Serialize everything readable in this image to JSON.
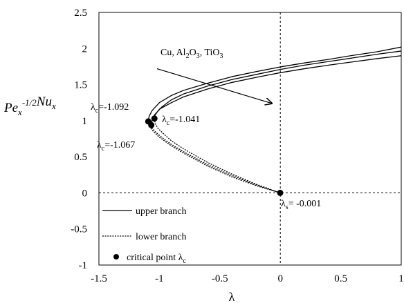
{
  "chart_data": {
    "type": "line",
    "xlabel": "λ",
    "ylabel": {
      "base1": "Pe",
      "sub1": "x",
      "sup1": "-1/2",
      "base2": "Nu",
      "sub2": "x"
    },
    "xlim": [
      -1.5,
      1
    ],
    "ylim": [
      -1,
      2.5
    ],
    "x_ticks": [
      "-1.5",
      "-1",
      "-0.5",
      "0",
      "0.5",
      "1"
    ],
    "y_ticks": [
      "-1",
      "-0.5",
      "0",
      "0.5",
      "1",
      "1.5",
      "2",
      "2.5"
    ],
    "reference_lines": {
      "x": 0,
      "y": 0
    },
    "grid": false,
    "legend_position": "bottom-left",
    "legend": [
      {
        "label": "upper branch",
        "style": "solid"
      },
      {
        "label": "lower branch",
        "style": "dashed"
      },
      {
        "label": "critical point λ",
        "sub": "c",
        "style": "marker"
      }
    ],
    "series": [
      {
        "branch": "upper",
        "style": "solid",
        "points": [
          [
            -1.092,
            0.99
          ],
          [
            -1.085,
            1.06
          ],
          [
            -1.06,
            1.14
          ],
          [
            -1.0,
            1.25
          ],
          [
            -0.9,
            1.35
          ],
          [
            -0.8,
            1.42
          ],
          [
            -0.6,
            1.52
          ],
          [
            -0.4,
            1.61
          ],
          [
            -0.2,
            1.68
          ],
          [
            0,
            1.745
          ],
          [
            0.2,
            1.8
          ],
          [
            0.4,
            1.85
          ],
          [
            0.6,
            1.905
          ],
          [
            0.8,
            1.955
          ],
          [
            1,
            2.02
          ]
        ]
      },
      {
        "branch": "upper",
        "style": "solid",
        "points": [
          [
            -1.067,
            0.94
          ],
          [
            -1.06,
            1.01
          ],
          [
            -1.04,
            1.08
          ],
          [
            -0.98,
            1.19
          ],
          [
            -0.9,
            1.29
          ],
          [
            -0.8,
            1.37
          ],
          [
            -0.6,
            1.48
          ],
          [
            -0.4,
            1.57
          ],
          [
            -0.2,
            1.64
          ],
          [
            0,
            1.71
          ],
          [
            0.2,
            1.77
          ],
          [
            0.4,
            1.82
          ],
          [
            0.6,
            1.87
          ],
          [
            0.8,
            1.92
          ],
          [
            1,
            1.965
          ]
        ]
      },
      {
        "branch": "upper",
        "style": "solid",
        "points": [
          [
            -1.041,
            1.03
          ],
          [
            -1.035,
            1.08
          ],
          [
            -1.0,
            1.16
          ],
          [
            -0.9,
            1.25
          ],
          [
            -0.8,
            1.33
          ],
          [
            -0.6,
            1.44
          ],
          [
            -0.4,
            1.53
          ],
          [
            -0.2,
            1.6
          ],
          [
            0,
            1.665
          ],
          [
            0.2,
            1.72
          ],
          [
            0.4,
            1.77
          ],
          [
            0.6,
            1.815
          ],
          [
            0.8,
            1.86
          ],
          [
            1,
            1.9
          ]
        ]
      },
      {
        "branch": "lower",
        "style": "dashed",
        "points": [
          [
            -1.092,
            0.99
          ],
          [
            -1.085,
            0.93
          ],
          [
            -1.05,
            0.85
          ],
          [
            -1.0,
            0.77
          ],
          [
            -0.9,
            0.65
          ],
          [
            -0.8,
            0.55
          ],
          [
            -0.6,
            0.37
          ],
          [
            -0.4,
            0.22
          ],
          [
            -0.2,
            0.1
          ],
          [
            -0.001,
            0
          ]
        ]
      },
      {
        "branch": "lower",
        "style": "dashed",
        "points": [
          [
            -1.067,
            0.94
          ],
          [
            -1.06,
            0.9
          ],
          [
            -1.03,
            0.84
          ],
          [
            -0.98,
            0.77
          ],
          [
            -0.9,
            0.67
          ],
          [
            -0.8,
            0.57
          ],
          [
            -0.6,
            0.39
          ],
          [
            -0.4,
            0.24
          ],
          [
            -0.2,
            0.11
          ],
          [
            -0.001,
            0
          ]
        ]
      },
      {
        "branch": "lower",
        "style": "dashed",
        "points": [
          [
            -1.041,
            1.03
          ],
          [
            -1.035,
            0.96
          ],
          [
            -1.01,
            0.89
          ],
          [
            -0.96,
            0.81
          ],
          [
            -0.9,
            0.72
          ],
          [
            -0.8,
            0.61
          ],
          [
            -0.6,
            0.42
          ],
          [
            -0.4,
            0.26
          ],
          [
            -0.2,
            0.12
          ],
          [
            -0.001,
            0
          ]
        ]
      }
    ],
    "critical_points": [
      {
        "x": -1.092,
        "y": 0.99
      },
      {
        "x": -1.067,
        "y": 0.94
      },
      {
        "x": -1.041,
        "y": 1.03
      },
      {
        "x": -0.001,
        "y": 0
      }
    ],
    "annotations": {
      "nanofluids": {
        "p1": "Cu, Al",
        "s1": "2",
        "p2": "O",
        "s2": "3",
        "p3": ", TiO",
        "s3": "3"
      },
      "arrow": {
        "from": [
          -1.02,
          1.72
        ],
        "to": [
          -0.07,
          1.24
        ]
      },
      "lc1": {
        "base": "λ",
        "sub": "c",
        "value": "=-1.092"
      },
      "lc2": {
        "base": "λ",
        "sub": "c",
        "value": "=-1.041"
      },
      "lc3": {
        "base": "λ",
        "sub": "c",
        "value": "=-1.067"
      },
      "ls": {
        "base": "λ",
        "sub": "s",
        "value": "= -0.001"
      }
    }
  }
}
